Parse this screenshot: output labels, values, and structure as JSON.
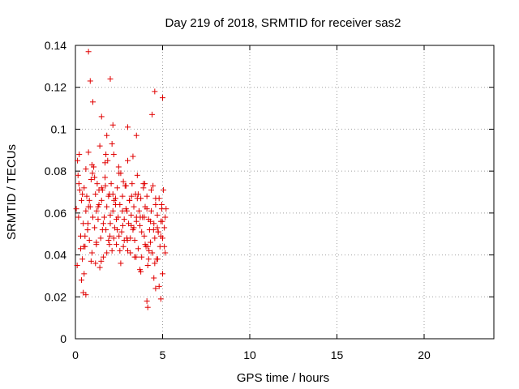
{
  "chart_data": {
    "type": "scatter",
    "title": "Day 219 of 2018, SRMTID for receiver sas2",
    "xlabel": "GPS time / hours",
    "ylabel": "SRMTID / TECUs",
    "xlim": [
      0,
      24
    ],
    "ylim": [
      0,
      0.14
    ],
    "xticks": [
      0,
      5,
      10,
      15,
      20
    ],
    "yticks": [
      0,
      0.02,
      0.04,
      0.06,
      0.08,
      0.1,
      0.12,
      0.14
    ],
    "xtick_labels": [
      "0",
      "5",
      "10",
      "15",
      "20"
    ],
    "ytick_labels": [
      "0",
      "0.02",
      "0.04",
      "0.06",
      "0.08",
      "0.1",
      "0.12",
      "0.14"
    ],
    "grid": true,
    "marker": "+",
    "color": "#e00000",
    "series": [
      {
        "name": "SRMTID",
        "x": [
          0.05,
          0.12,
          0.18,
          0.25,
          0.3,
          0.35,
          0.4,
          0.45,
          0.5,
          0.55,
          0.6,
          0.65,
          0.7,
          0.75,
          0.8,
          0.85,
          0.9,
          0.95,
          1.0,
          1.05,
          1.1,
          1.15,
          1.2,
          1.25,
          1.3,
          1.35,
          1.4,
          1.45,
          1.5,
          1.55,
          1.6,
          1.65,
          1.7,
          1.75,
          1.8,
          1.85,
          1.9,
          1.95,
          2.0,
          2.05,
          2.1,
          2.15,
          2.2,
          2.25,
          2.3,
          2.35,
          2.4,
          2.45,
          2.5,
          2.55,
          2.6,
          2.65,
          2.7,
          2.75,
          2.8,
          2.85,
          2.9,
          2.95,
          3.0,
          3.05,
          3.1,
          3.15,
          3.2,
          3.25,
          3.3,
          3.35,
          3.4,
          3.45,
          3.5,
          3.55,
          3.6,
          3.65,
          3.7,
          3.75,
          3.8,
          3.85,
          3.9,
          3.95,
          4.0,
          4.05,
          4.1,
          4.15,
          4.2,
          4.25,
          4.3,
          4.35,
          4.4,
          4.45,
          4.5,
          4.55,
          4.6,
          4.65,
          4.7,
          4.75,
          4.8,
          4.85,
          4.9,
          4.95,
          5.0,
          5.05,
          5.1,
          5.15,
          5.2,
          0.1,
          0.2,
          0.3,
          0.4,
          0.5,
          0.6,
          0.7,
          0.8,
          0.9,
          1.0,
          1.1,
          1.2,
          1.3,
          1.4,
          1.5,
          1.6,
          1.7,
          1.8,
          1.9,
          2.0,
          2.1,
          2.2,
          2.3,
          2.4,
          2.5,
          2.6,
          2.7,
          2.8,
          2.9,
          3.0,
          3.1,
          3.2,
          3.3,
          3.4,
          3.5,
          3.6,
          3.7,
          3.8,
          3.9,
          4.0,
          4.1,
          4.2,
          4.3,
          4.4,
          4.5,
          4.6,
          4.7,
          4.8,
          4.9,
          5.0,
          5.1,
          0.15,
          0.35,
          0.55,
          0.75,
          0.95,
          1.15,
          1.35,
          1.55,
          1.75,
          1.95,
          2.15,
          2.35,
          2.55,
          2.75,
          2.95,
          3.15,
          3.35,
          3.55,
          3.75,
          3.95,
          4.15,
          4.35,
          4.55,
          4.75,
          4.95,
          5.15,
          0.22,
          0.48,
          0.72,
          0.98,
          1.22,
          1.48,
          1.72,
          1.98,
          2.22,
          2.48,
          2.72,
          2.98,
          3.22,
          3.48,
          3.72,
          3.98,
          4.22,
          4.48,
          4.72,
          4.98,
          0.75,
          0.85,
          1.0,
          2.15,
          4.1,
          4.15,
          4.55,
          4.9,
          5.0,
          0.45,
          1.5,
          1.8,
          3.0,
          3.5,
          4.4,
          0.6,
          2.0,
          4.6
        ],
        "y": [
          0.062,
          0.085,
          0.058,
          0.071,
          0.049,
          0.066,
          0.038,
          0.055,
          0.072,
          0.044,
          0.061,
          0.068,
          0.052,
          0.089,
          0.047,
          0.063,
          0.076,
          0.041,
          0.058,
          0.082,
          0.053,
          0.069,
          0.045,
          0.074,
          0.057,
          0.064,
          0.092,
          0.048,
          0.066,
          0.071,
          0.039,
          0.058,
          0.077,
          0.052,
          0.063,
          0.085,
          0.047,
          0.069,
          0.055,
          0.074,
          0.042,
          0.061,
          0.088,
          0.053,
          0.067,
          0.045,
          0.072,
          0.058,
          0.049,
          0.064,
          0.079,
          0.051,
          0.068,
          0.044,
          0.057,
          0.073,
          0.062,
          0.048,
          0.085,
          0.055,
          0.066,
          0.041,
          0.059,
          0.074,
          0.052,
          0.063,
          0.047,
          0.069,
          0.056,
          0.078,
          0.043,
          0.061,
          0.054,
          0.067,
          0.039,
          0.058,
          0.072,
          0.049,
          0.063,
          0.044,
          0.068,
          0.035,
          0.057,
          0.052,
          0.046,
          0.061,
          0.041,
          0.073,
          0.055,
          0.048,
          0.064,
          0.038,
          0.059,
          0.051,
          0.067,
          0.044,
          0.056,
          0.062,
          0.048,
          0.071,
          0.053,
          0.058,
          0.062,
          0.035,
          0.074,
          0.043,
          0.069,
          0.031,
          0.081,
          0.052,
          0.066,
          0.037,
          0.058,
          0.077,
          0.046,
          0.063,
          0.034,
          0.072,
          0.055,
          0.084,
          0.041,
          0.068,
          0.059,
          0.093,
          0.048,
          0.064,
          0.052,
          0.079,
          0.036,
          0.061,
          0.047,
          0.073,
          0.042,
          0.066,
          0.054,
          0.087,
          0.039,
          0.058,
          0.069,
          0.033,
          0.051,
          0.074,
          0.045,
          0.062,
          0.038,
          0.056,
          0.041,
          0.029,
          0.067,
          0.053,
          0.025,
          0.049,
          0.031,
          0.044,
          0.078,
          0.028,
          0.049,
          0.063,
          0.083,
          0.036,
          0.071,
          0.052,
          0.088,
          0.045,
          0.069,
          0.057,
          0.042,
          0.075,
          0.061,
          0.048,
          0.053,
          0.067,
          0.032,
          0.058,
          0.044,
          0.071,
          0.036,
          0.051,
          0.064,
          0.041,
          0.088,
          0.044,
          0.055,
          0.079,
          0.061,
          0.037,
          0.073,
          0.049,
          0.066,
          0.082,
          0.054,
          0.047,
          0.068,
          0.039,
          0.058,
          0.074,
          0.042,
          0.052,
          0.038,
          0.056,
          0.137,
          0.123,
          0.113,
          0.102,
          0.018,
          0.015,
          0.118,
          0.019,
          0.115,
          0.022,
          0.106,
          0.097,
          0.101,
          0.097,
          0.107,
          0.021,
          0.124,
          0.024
        ]
      }
    ]
  }
}
